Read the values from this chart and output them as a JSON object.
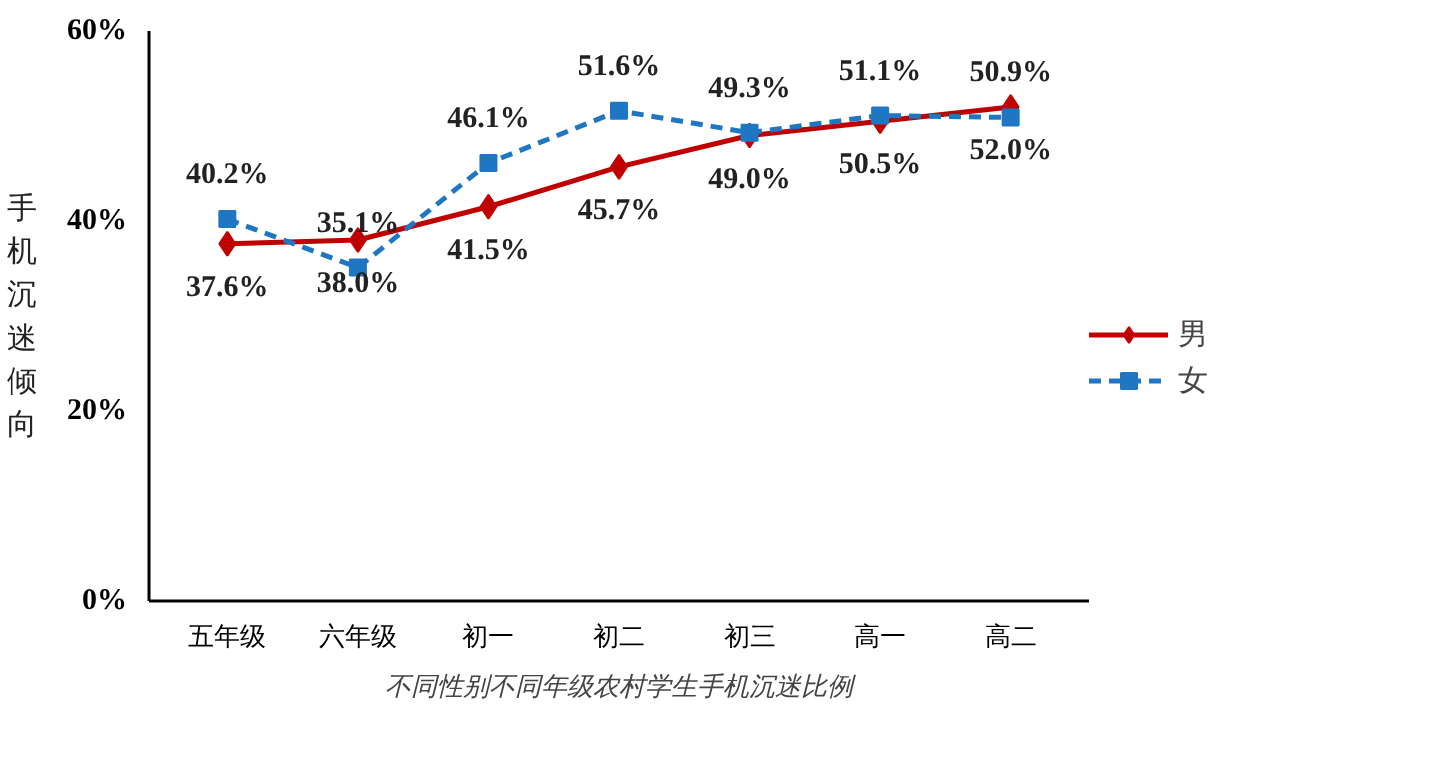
{
  "chart_data": {
    "type": "line",
    "ylabel": "手机沉迷倾向",
    "categories": [
      "五年级",
      "六年级",
      "初一",
      "初二",
      "初三",
      "高一",
      "高二"
    ],
    "series": [
      {
        "name": "男",
        "color": "#c00000",
        "values": [
          37.6,
          38.0,
          41.5,
          45.7,
          49.0,
          50.5,
          52.0
        ],
        "value_labels": [
          "37.6%",
          "38.0%",
          "41.5%",
          "45.7%",
          "49.0%",
          "50.5%",
          "52.0%"
        ],
        "marker": "diamond",
        "line_style": "solid"
      },
      {
        "name": "女",
        "color": "#1f77c4",
        "values": [
          40.2,
          35.1,
          46.1,
          51.6,
          49.3,
          51.1,
          50.9
        ],
        "value_labels": [
          "40.2%",
          "35.1%",
          "46.1%",
          "51.6%",
          "49.3%",
          "51.1%",
          "50.9%"
        ],
        "marker": "square",
        "line_style": "dashed"
      }
    ],
    "ylim": [
      0,
      60
    ],
    "yticks": [
      {
        "value": 0,
        "label": "0%"
      },
      {
        "value": 20,
        "label": "20%"
      },
      {
        "value": 40,
        "label": "40%"
      },
      {
        "value": 60,
        "label": "60%"
      }
    ],
    "grid": false,
    "legend": "right",
    "data_labels": true,
    "annotations": [
      "不同性别不同年级农村学生手机沉迷比例"
    ]
  }
}
